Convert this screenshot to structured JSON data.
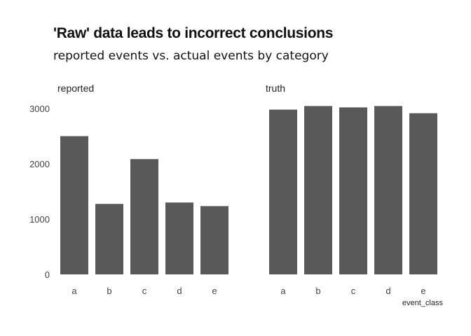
{
  "title": "'Raw' data leads to incorrect conclusions",
  "subtitle": "reported events vs. actual events by category",
  "chart_data": {
    "type": "bar",
    "title": "'Raw' data leads to incorrect conclusions",
    "subtitle": "reported events vs. actual events by category",
    "xlabel": "event_class",
    "ylabel": "",
    "ylim": [
      0,
      3000
    ],
    "yticks": [
      0,
      1000,
      2000,
      3000
    ],
    "grid": false,
    "bar_color": "#595959",
    "categories": [
      "a",
      "b",
      "c",
      "d",
      "e"
    ],
    "facets": [
      {
        "label": "reported",
        "values": [
          2500,
          1275,
          2085,
          1300,
          1235
        ]
      },
      {
        "label": "truth",
        "values": [
          2980,
          3045,
          3020,
          3045,
          2915
        ]
      }
    ]
  }
}
